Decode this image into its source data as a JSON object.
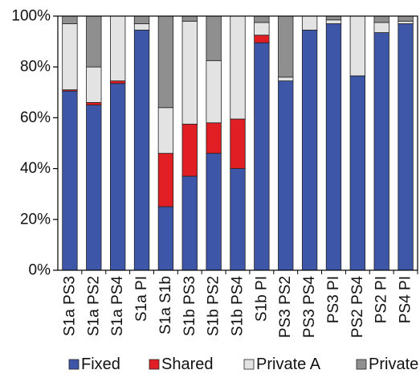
{
  "chart_data": {
    "type": "bar",
    "stacked": true,
    "percent": true,
    "title": "",
    "xlabel": "",
    "ylabel": "",
    "ylim": [
      0,
      100
    ],
    "yticks": [
      "0%",
      "20%",
      "40%",
      "60%",
      "80%",
      "100%"
    ],
    "grid": false,
    "legend_position": "bottom",
    "categories": [
      "S1a PS3",
      "S1a PS2",
      "S1a PS4",
      "S1a PI",
      "S1a S1b",
      "S1b PS3",
      "S1b PS2",
      "S1b PS4",
      "S1b PI",
      "PS3 PS2",
      "PS3 PS4",
      "PS3 PI",
      "PS2 PS4",
      "PS2 PI",
      "PS4 PI"
    ],
    "series": [
      {
        "name": "Fixed",
        "color": "#3e56a8",
        "values": [
          70.5,
          65,
          73.5,
          94.5,
          25,
          37,
          46,
          40,
          89.5,
          74.5,
          94.5,
          97,
          76.5,
          93.5,
          97
        ]
      },
      {
        "name": "Shared",
        "color": "#e01e23",
        "values": [
          0.5,
          1,
          1,
          0,
          21,
          20.5,
          12,
          19.5,
          3,
          0,
          0,
          0,
          0,
          0,
          0
        ]
      },
      {
        "name": "Private A",
        "color": "#e3e3e3",
        "values": [
          26,
          14,
          25.5,
          2.5,
          18,
          40.5,
          24.5,
          40.5,
          5,
          1.5,
          5.5,
          1.5,
          23.5,
          4,
          1
        ]
      },
      {
        "name": "Private B",
        "color": "#8f8f8f",
        "values": [
          3,
          20,
          0,
          3,
          36,
          2,
          17.5,
          0,
          2.5,
          24,
          0,
          1.5,
          0,
          2.5,
          2
        ]
      }
    ]
  }
}
